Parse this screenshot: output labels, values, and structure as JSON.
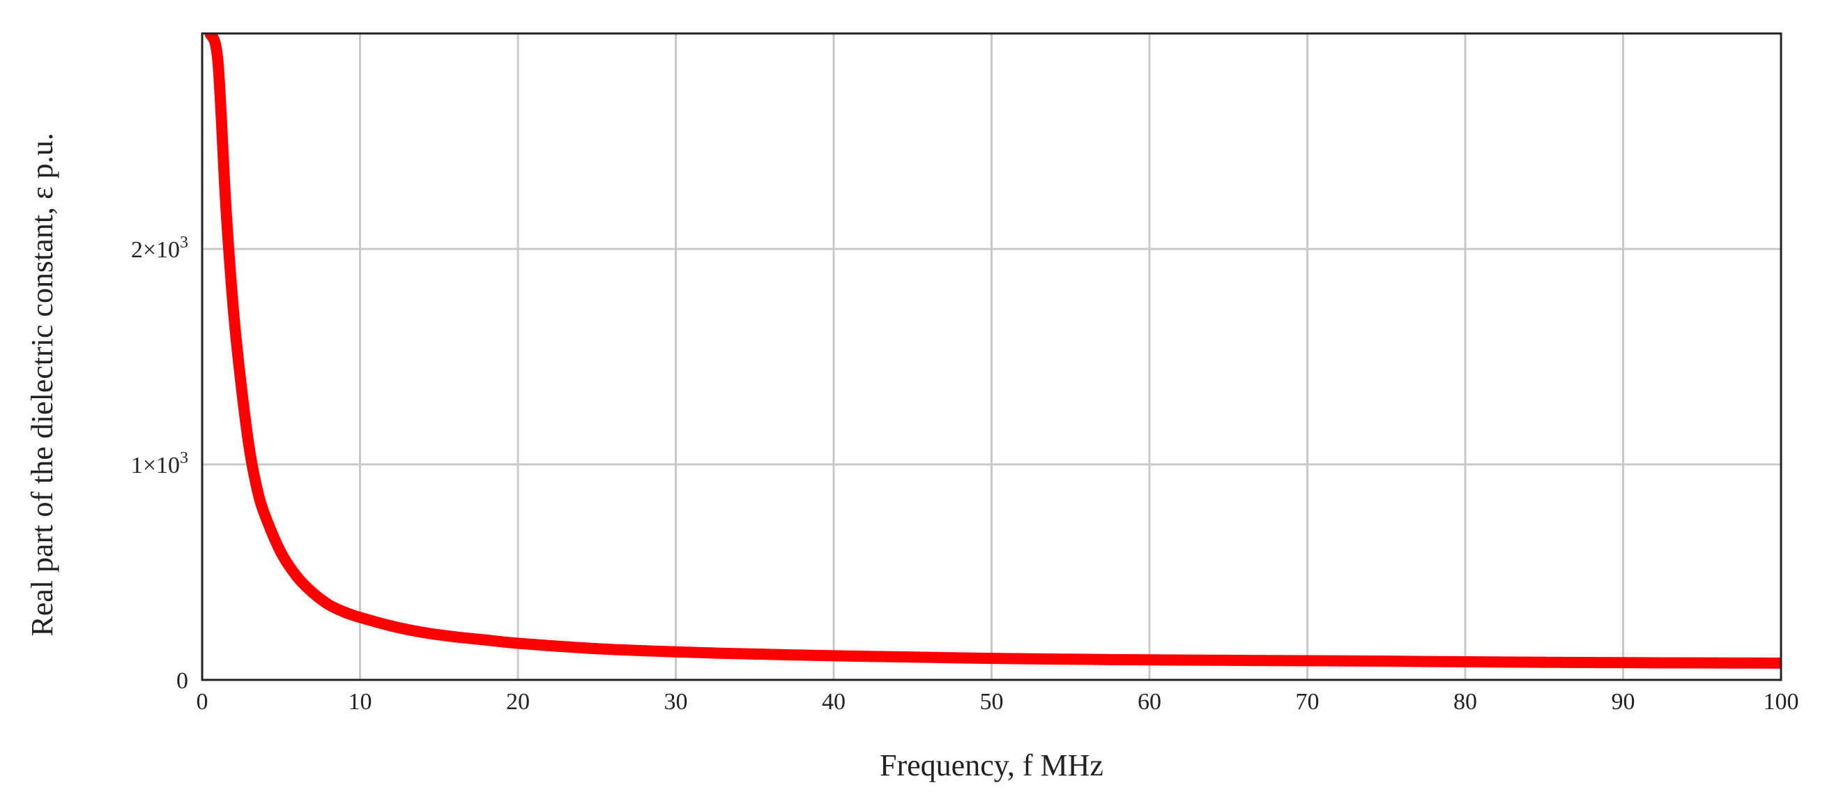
{
  "chart_data": {
    "type": "line",
    "title": "",
    "xlabel": "Frequency, f MHz",
    "ylabel": "Real part of the dielectric constant, ε p.u.",
    "xlim": [
      0,
      100
    ],
    "ylim": [
      0,
      3000
    ],
    "grid": true,
    "x_ticks": [
      {
        "value": 0,
        "label": "0"
      },
      {
        "value": 10,
        "label": "10"
      },
      {
        "value": 20,
        "label": "20"
      },
      {
        "value": 30,
        "label": "30"
      },
      {
        "value": 40,
        "label": "40"
      },
      {
        "value": 50,
        "label": "50"
      },
      {
        "value": 60,
        "label": "60"
      },
      {
        "value": 70,
        "label": "70"
      },
      {
        "value": 80,
        "label": "80"
      },
      {
        "value": 90,
        "label": "90"
      },
      {
        "value": 100,
        "label": "100"
      }
    ],
    "y_ticks": [
      {
        "value": 0,
        "label": "0",
        "exp": ""
      },
      {
        "value": 1000,
        "label": "1×10",
        "exp": "3"
      },
      {
        "value": 2000,
        "label": "2×10",
        "exp": "3"
      }
    ],
    "series": [
      {
        "color": "#ff0000",
        "x": [
          0.5,
          1,
          1.5,
          2,
          2.5,
          3,
          3.5,
          4,
          5,
          6,
          7,
          8,
          9,
          10,
          12,
          14,
          16,
          18,
          20,
          25,
          30,
          35,
          40,
          45,
          50,
          55,
          60,
          65,
          70,
          75,
          80,
          85,
          90,
          95,
          100
        ],
        "y": [
          3000,
          2870,
          2200,
          1700,
          1350,
          1070,
          880,
          760,
          590,
          480,
          405,
          350,
          315,
          290,
          250,
          220,
          200,
          185,
          170,
          145,
          130,
          120,
          112,
          106,
          100,
          96,
          93,
          91,
          89,
          87,
          84,
          82,
          80,
          79,
          78
        ]
      }
    ]
  }
}
